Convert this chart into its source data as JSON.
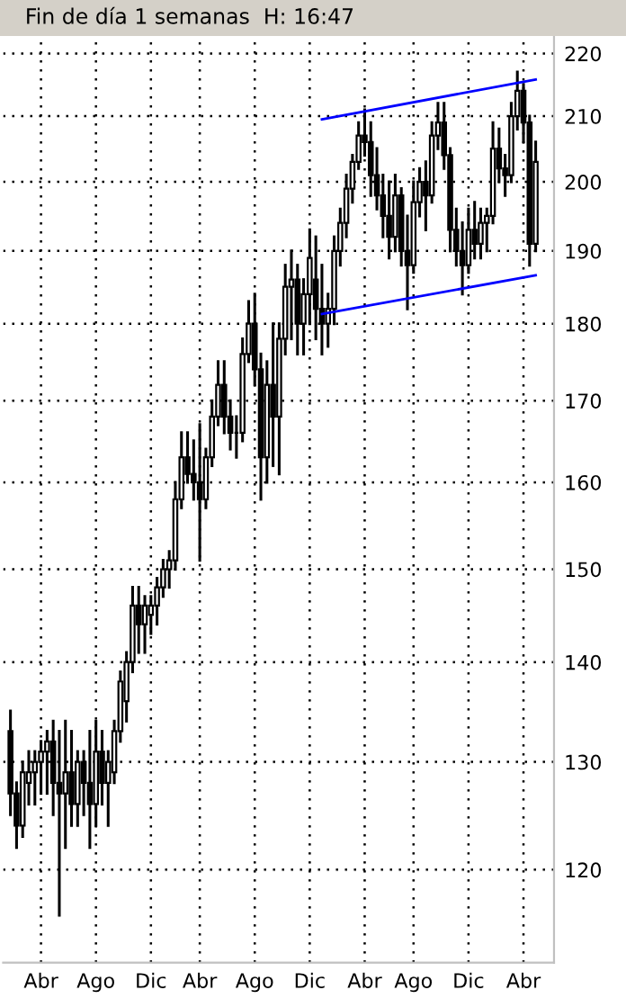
{
  "chart_data": {
    "type": "candlestick",
    "title": "Fin de día 1 semanas  H: 16:47",
    "color": "#000000",
    "categories": [
      null,
      null,
      null,
      null,
      null,
      "Abr",
      null,
      null,
      null,
      null,
      null,
      null,
      null,
      null,
      "Ago",
      null,
      null,
      null,
      null,
      null,
      null,
      null,
      null,
      "Dic",
      null,
      null,
      null,
      null,
      null,
      null,
      null,
      "Abr",
      null,
      null,
      null,
      null,
      null,
      null,
      null,
      null,
      "Ago",
      null,
      null,
      null,
      null,
      null,
      null,
      null,
      null,
      "Dic",
      null,
      null,
      null,
      null,
      null,
      null,
      null,
      null,
      "Abr",
      null,
      null,
      null,
      null,
      null,
      null,
      null,
      "Ago",
      null,
      null,
      null,
      null,
      null,
      null,
      null,
      null,
      "Dic",
      null,
      null,
      null,
      null,
      null,
      null,
      null,
      null,
      "Abr",
      null,
      null
    ],
    "ohlc": [
      [
        133,
        135,
        125,
        127
      ],
      [
        127,
        128,
        122,
        124
      ],
      [
        124,
        130,
        123,
        129
      ],
      [
        128,
        131,
        126,
        129
      ],
      [
        129,
        131,
        126,
        130
      ],
      [
        130,
        132,
        127,
        131
      ],
      [
        131,
        133,
        127,
        132
      ],
      [
        132,
        134,
        125,
        128
      ],
      [
        128,
        133,
        116,
        127
      ],
      [
        127,
        134,
        122,
        129
      ],
      [
        129,
        133,
        124,
        126
      ],
      [
        126,
        131,
        124,
        130
      ],
      [
        130,
        131,
        125,
        128
      ],
      [
        128,
        133,
        122,
        126
      ],
      [
        126,
        134,
        124,
        131
      ],
      [
        131,
        133,
        126,
        128
      ],
      [
        128,
        131,
        124,
        130
      ],
      [
        129,
        134,
        128,
        133
      ],
      [
        133,
        139,
        132,
        138
      ],
      [
        136,
        141,
        134,
        140
      ],
      [
        140,
        148,
        139,
        146
      ],
      [
        146,
        148,
        141,
        144
      ],
      [
        144,
        147,
        141,
        146
      ],
      [
        145,
        147,
        143,
        146
      ],
      [
        146,
        149,
        144,
        148
      ],
      [
        148,
        151,
        147,
        150
      ],
      [
        150,
        152,
        148,
        151
      ],
      [
        151,
        160,
        150,
        158
      ],
      [
        158,
        166,
        157,
        163
      ],
      [
        163,
        166,
        160,
        161
      ],
      [
        161,
        165,
        158,
        160
      ],
      [
        160,
        167,
        151,
        158
      ],
      [
        158,
        164,
        157,
        163
      ],
      [
        163,
        170,
        162,
        168
      ],
      [
        168,
        175,
        167,
        172
      ],
      [
        172,
        175,
        166,
        168
      ],
      [
        168,
        170,
        164,
        166
      ],
      [
        166,
        168,
        163,
        166
      ],
      [
        166,
        178,
        165,
        176
      ],
      [
        176,
        183,
        175,
        180
      ],
      [
        180,
        184,
        172,
        174
      ],
      [
        174,
        176,
        158,
        163
      ],
      [
        163,
        175,
        160,
        172
      ],
      [
        172,
        180,
        162,
        168
      ],
      [
        168,
        180,
        161,
        178
      ],
      [
        178,
        188,
        176,
        185
      ],
      [
        185,
        190,
        178,
        186
      ],
      [
        186,
        188,
        176,
        180
      ],
      [
        180,
        186,
        176,
        184
      ],
      [
        184,
        193,
        180,
        189
      ],
      [
        186,
        192,
        178,
        182
      ],
      [
        182,
        188,
        176,
        180
      ],
      [
        180,
        184,
        177,
        182
      ],
      [
        182,
        192,
        180,
        190
      ],
      [
        190,
        196,
        188,
        194
      ],
      [
        194,
        201,
        192,
        199
      ],
      [
        199,
        204,
        197,
        203
      ],
      [
        203,
        209,
        202,
        207
      ],
      [
        207,
        211,
        204,
        206
      ],
      [
        206,
        209,
        198,
        201
      ],
      [
        201,
        205,
        196,
        198
      ],
      [
        198,
        201,
        192,
        195
      ],
      [
        195,
        200,
        189,
        192
      ],
      [
        192,
        201,
        190,
        198
      ],
      [
        198,
        199,
        188,
        190
      ],
      [
        190,
        195,
        182,
        188
      ],
      [
        188,
        200,
        187,
        197
      ],
      [
        197,
        202,
        195,
        200
      ],
      [
        200,
        203,
        193,
        198
      ],
      [
        198,
        209,
        197,
        207
      ],
      [
        207,
        212,
        205,
        209
      ],
      [
        209,
        212,
        202,
        204
      ],
      [
        204,
        205,
        190,
        193
      ],
      [
        193,
        196,
        188,
        190
      ],
      [
        190,
        194,
        184,
        188
      ],
      [
        188,
        196,
        187,
        193
      ],
      [
        193,
        197,
        189,
        191
      ],
      [
        191,
        196,
        189,
        194
      ],
      [
        194,
        196,
        190,
        195
      ],
      [
        195,
        209,
        194,
        205
      ],
      [
        205,
        208,
        200,
        202
      ],
      [
        202,
        204,
        198,
        201
      ],
      [
        201,
        212,
        200,
        210
      ],
      [
        210,
        217,
        208,
        214
      ],
      [
        214,
        215,
        206,
        209
      ],
      [
        209,
        210,
        188,
        191
      ],
      [
        191,
        206,
        190,
        203
      ]
    ],
    "series": [
      {
        "type": "line",
        "color": "#0000ff",
        "values": [
          null,
          null,
          null,
          null,
          null,
          null,
          null,
          null,
          null,
          null,
          null,
          null,
          null,
          null,
          null,
          null,
          null,
          null,
          null,
          null,
          null,
          null,
          null,
          null,
          null,
          null,
          null,
          null,
          null,
          null,
          null,
          null,
          null,
          null,
          null,
          null,
          null,
          null,
          null,
          null,
          null,
          null,
          null,
          null,
          null,
          null,
          null,
          null,
          null,
          null,
          null,
          209.5,
          null,
          null,
          null,
          null,
          null,
          null,
          null,
          null,
          null,
          null,
          null,
          null,
          null,
          null,
          null,
          null,
          null,
          null,
          null,
          null,
          null,
          null,
          null,
          null,
          null,
          null,
          null,
          null,
          null,
          null,
          null,
          null,
          null,
          null,
          215.8
        ]
      },
      {
        "type": "line",
        "color": "#0000ff",
        "values": [
          null,
          null,
          null,
          null,
          null,
          null,
          null,
          null,
          null,
          null,
          null,
          null,
          null,
          null,
          null,
          null,
          null,
          null,
          null,
          null,
          null,
          null,
          null,
          null,
          null,
          null,
          null,
          null,
          null,
          null,
          null,
          null,
          null,
          null,
          null,
          null,
          null,
          null,
          null,
          null,
          null,
          null,
          null,
          null,
          null,
          null,
          null,
          null,
          null,
          null,
          null,
          181.3,
          null,
          null,
          null,
          null,
          null,
          null,
          null,
          null,
          null,
          null,
          null,
          null,
          null,
          null,
          null,
          null,
          null,
          null,
          null,
          null,
          null,
          null,
          null,
          null,
          null,
          null,
          null,
          null,
          null,
          null,
          null,
          null,
          null,
          null,
          186.6
        ]
      }
    ],
    "log": true,
    "ylim": [
      112,
      223
    ],
    "yticks": [
      120,
      130,
      140,
      150,
      160,
      170,
      180,
      190,
      200,
      210,
      220
    ],
    "grid": true
  }
}
